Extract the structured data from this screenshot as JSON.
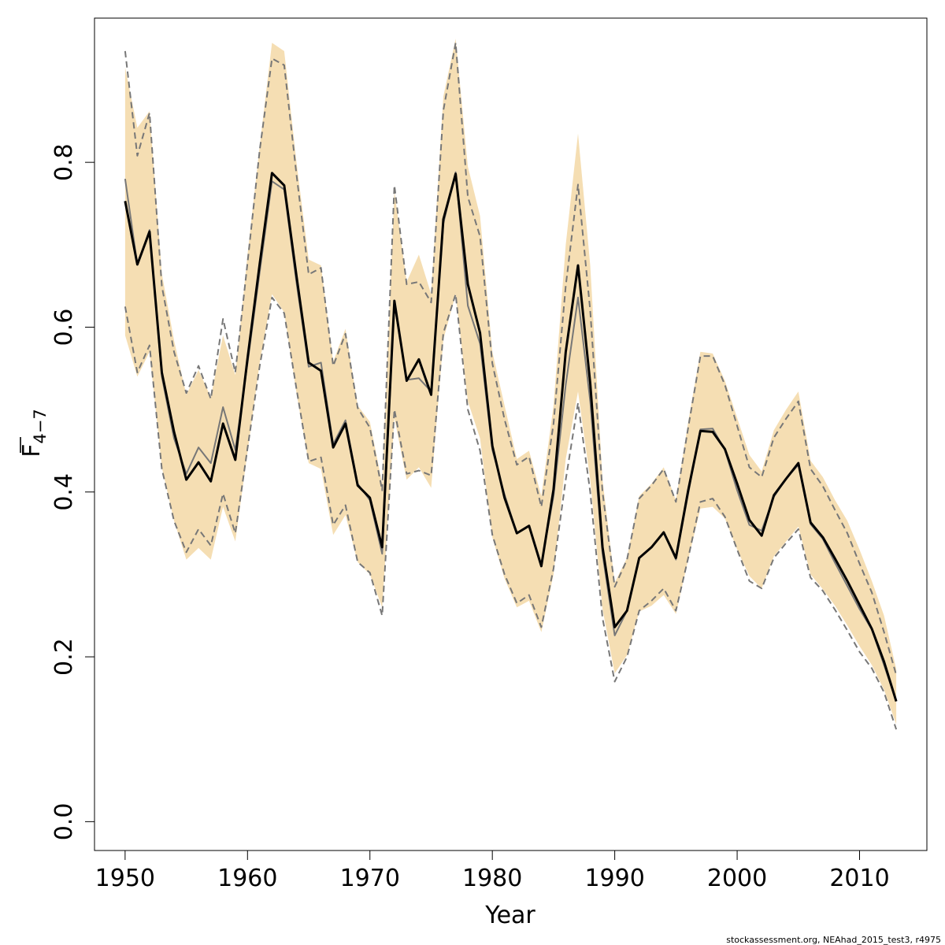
{
  "chart_data": {
    "type": "line",
    "xlabel": "Year",
    "ylabel": "F̄₄₋₇",
    "ylabel_main": "F",
    "ylabel_sub": "4−7",
    "credit": "stockassessment.org, NEAhad_2015_test3, r4975",
    "xlim": [
      1947.5,
      2015.5
    ],
    "ylim": [
      -0.035,
      0.975
    ],
    "xticks": [
      1950,
      1960,
      1970,
      1980,
      1990,
      2000,
      2010
    ],
    "yticks": [
      0.0,
      0.2,
      0.4,
      0.6,
      0.8
    ],
    "ytick_labels": [
      "0.0",
      "0.2",
      "0.4",
      "0.6",
      "0.8"
    ],
    "x": [
      1950,
      1951,
      1952,
      1953,
      1954,
      1955,
      1956,
      1957,
      1958,
      1959,
      1960,
      1961,
      1962,
      1963,
      1964,
      1965,
      1966,
      1967,
      1968,
      1969,
      1970,
      1971,
      1972,
      1973,
      1974,
      1975,
      1976,
      1977,
      1978,
      1979,
      1980,
      1981,
      1982,
      1983,
      1984,
      1985,
      1986,
      1987,
      1988,
      1989,
      1990,
      1991,
      1992,
      1993,
      1994,
      1995,
      1996,
      1997,
      1998,
      1999,
      2000,
      2001,
      2002,
      2003,
      2004,
      2005,
      2006,
      2007,
      2008,
      2009,
      2010,
      2011,
      2012,
      2013
    ],
    "band_color": "#f5deb3",
    "series": [
      {
        "role": "estimate",
        "color": "#000000",
        "values": [
          0.753,
          0.676,
          0.716,
          0.545,
          0.473,
          0.415,
          0.436,
          0.413,
          0.483,
          0.439,
          0.562,
          0.677,
          0.787,
          0.772,
          0.662,
          0.557,
          0.547,
          0.454,
          0.483,
          0.408,
          0.393,
          0.333,
          0.632,
          0.535,
          0.561,
          0.518,
          0.731,
          0.786,
          0.652,
          0.593,
          0.456,
          0.393,
          0.35,
          0.359,
          0.31,
          0.403,
          0.57,
          0.675,
          0.532,
          0.333,
          0.236,
          0.256,
          0.32,
          0.333,
          0.351,
          0.32,
          0.402,
          0.474,
          0.473,
          0.452,
          0.41,
          0.366,
          0.347,
          0.396,
          0.416,
          0.435,
          0.363,
          0.345,
          0.319,
          0.292,
          0.263,
          0.234,
          0.194,
          0.146
        ]
      },
      {
        "role": "reference-estimate",
        "color": "#777777",
        "values": [
          0.78,
          0.676,
          0.718,
          0.54,
          0.465,
          0.422,
          0.454,
          0.435,
          0.503,
          0.451,
          0.556,
          0.667,
          0.777,
          0.767,
          0.654,
          0.552,
          0.557,
          0.458,
          0.487,
          0.41,
          0.39,
          0.325,
          0.628,
          0.536,
          0.538,
          0.522,
          0.726,
          0.788,
          0.626,
          0.58,
          0.451,
          0.397,
          0.35,
          0.359,
          0.312,
          0.395,
          0.53,
          0.636,
          0.51,
          0.325,
          0.226,
          0.256,
          0.32,
          0.333,
          0.351,
          0.318,
          0.398,
          0.476,
          0.477,
          0.451,
          0.402,
          0.36,
          0.353,
          0.394,
          0.416,
          0.433,
          0.361,
          0.343,
          0.314,
          0.286,
          0.258,
          0.233,
          0.19,
          0.146
        ]
      },
      {
        "role": "reference-upper",
        "color": "#777777",
        "dashed": true,
        "values": [
          0.935,
          0.808,
          0.86,
          0.65,
          0.57,
          0.52,
          0.553,
          0.513,
          0.61,
          0.545,
          0.678,
          0.815,
          0.926,
          0.918,
          0.785,
          0.664,
          0.672,
          0.553,
          0.592,
          0.502,
          0.478,
          0.402,
          0.772,
          0.652,
          0.655,
          0.63,
          0.863,
          0.945,
          0.758,
          0.71,
          0.556,
          0.488,
          0.433,
          0.443,
          0.382,
          0.483,
          0.65,
          0.773,
          0.62,
          0.4,
          0.285,
          0.318,
          0.392,
          0.408,
          0.428,
          0.388,
          0.478,
          0.565,
          0.565,
          0.53,
          0.48,
          0.43,
          0.418,
          0.466,
          0.489,
          0.51,
          0.428,
          0.407,
          0.378,
          0.35,
          0.313,
          0.278,
          0.23,
          0.178
        ]
      },
      {
        "role": "reference-lower",
        "color": "#777777",
        "dashed": true,
        "values": [
          0.625,
          0.545,
          0.578,
          0.428,
          0.365,
          0.327,
          0.355,
          0.335,
          0.398,
          0.35,
          0.453,
          0.553,
          0.636,
          0.617,
          0.525,
          0.437,
          0.442,
          0.36,
          0.384,
          0.315,
          0.302,
          0.25,
          0.5,
          0.422,
          0.426,
          0.42,
          0.593,
          0.64,
          0.5,
          0.45,
          0.348,
          0.3,
          0.265,
          0.275,
          0.236,
          0.307,
          0.415,
          0.508,
          0.4,
          0.247,
          0.17,
          0.2,
          0.256,
          0.268,
          0.283,
          0.256,
          0.32,
          0.388,
          0.392,
          0.37,
          0.33,
          0.292,
          0.283,
          0.32,
          0.338,
          0.355,
          0.296,
          0.28,
          0.257,
          0.232,
          0.206,
          0.186,
          0.157,
          0.112
        ]
      },
      {
        "role": "band-upper",
        "values": [
          0.915,
          0.842,
          0.862,
          0.665,
          0.584,
          0.518,
          0.548,
          0.515,
          0.59,
          0.542,
          0.688,
          0.82,
          0.945,
          0.935,
          0.8,
          0.682,
          0.675,
          0.558,
          0.598,
          0.505,
          0.485,
          0.41,
          0.765,
          0.655,
          0.688,
          0.64,
          0.88,
          0.95,
          0.795,
          0.735,
          0.57,
          0.505,
          0.44,
          0.45,
          0.395,
          0.505,
          0.7,
          0.835,
          0.675,
          0.415,
          0.29,
          0.32,
          0.395,
          0.41,
          0.43,
          0.39,
          0.485,
          0.57,
          0.568,
          0.535,
          0.49,
          0.445,
          0.425,
          0.475,
          0.5,
          0.522,
          0.438,
          0.418,
          0.39,
          0.365,
          0.33,
          0.292,
          0.25,
          0.185
        ]
      },
      {
        "role": "band-lower",
        "values": [
          0.59,
          0.54,
          0.57,
          0.43,
          0.365,
          0.318,
          0.332,
          0.318,
          0.382,
          0.34,
          0.448,
          0.557,
          0.64,
          0.618,
          0.52,
          0.435,
          0.428,
          0.348,
          0.372,
          0.315,
          0.3,
          0.26,
          0.49,
          0.415,
          0.43,
          0.405,
          0.585,
          0.64,
          0.51,
          0.465,
          0.345,
          0.295,
          0.26,
          0.268,
          0.23,
          0.3,
          0.44,
          0.522,
          0.415,
          0.258,
          0.18,
          0.202,
          0.255,
          0.262,
          0.275,
          0.252,
          0.318,
          0.38,
          0.382,
          0.368,
          0.33,
          0.298,
          0.283,
          0.322,
          0.34,
          0.358,
          0.3,
          0.282,
          0.262,
          0.238,
          0.213,
          0.19,
          0.16,
          0.118
        ]
      }
    ]
  }
}
